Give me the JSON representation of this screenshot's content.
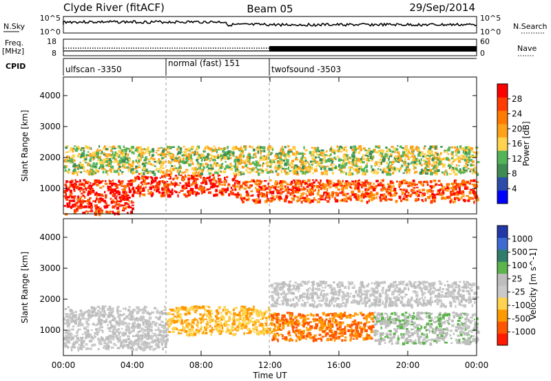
{
  "header": {
    "station": "Clyde River (fitACF)",
    "beam": "Beam 05",
    "date": "29/Sep/2014"
  },
  "panels": {
    "nsky_label": "N.Sky",
    "nsky_ticks": [
      "10^5",
      "10^0"
    ],
    "nsearch_label": "N.Search",
    "nsearch_ticks": [
      "10^5",
      "10^0"
    ],
    "freq_label_1": "Freq.",
    "freq_label_2": "[MHz]",
    "freq_ticks": [
      "18",
      "8"
    ],
    "nave_label": "Nave",
    "nave_ticks": [
      "60",
      "0"
    ],
    "cpid_label": "CPID",
    "cpid_segments": [
      {
        "label": "ulfscan -3350",
        "start_hour": 0,
        "end_hour": 6
      },
      {
        "label": "normal (fast) 151",
        "start_hour": 6,
        "end_hour": 12
      },
      {
        "label": "twofsound -3503",
        "start_hour": 12,
        "end_hour": 24
      }
    ]
  },
  "colors": {
    "power_scale": [
      "#0000ff",
      "#2b4ca8",
      "#3e8c52",
      "#53b45a",
      "#ffd34d",
      "#ffa21a",
      "#ff7a00",
      "#ff3d00",
      "#ff0000"
    ],
    "velocity_scale": [
      "#2338a8",
      "#3d6bd1",
      "#2f7d6a",
      "#5cb44a",
      "#bdbdbd",
      "#c9c9c9",
      "#ffd34d",
      "#ff9900",
      "#ff5500",
      "#ff1a00"
    ]
  },
  "chart_data": [
    {
      "type": "heatmap",
      "title": "Beam 05",
      "xlabel": "Time UT",
      "ylabel": "Slant Range [km]",
      "x_ticks": [
        "00:00",
        "04:00",
        "08:00",
        "12:00",
        "16:00",
        "20:00",
        "00:00"
      ],
      "x_range_hours": [
        0,
        24
      ],
      "y_ticks": [
        "1000",
        "2000",
        "3000",
        "4000"
      ],
      "ylim": [
        180,
        4600
      ],
      "colorbar": {
        "label": "Power [dB]",
        "ticks": [
          "4",
          "8",
          "12",
          "16",
          "20",
          "24",
          "28"
        ],
        "range": [
          0,
          30
        ]
      },
      "echo_regions": [
        {
          "hours": [
            0,
            4
          ],
          "range_km": [
            200,
            1300
          ],
          "value": 28
        },
        {
          "hours": [
            4,
            10
          ],
          "range_km": [
            800,
            1500
          ],
          "value": 26
        },
        {
          "hours": [
            10,
            24
          ],
          "range_km": [
            600,
            1300
          ],
          "value": 24
        },
        {
          "hours": [
            0,
            24
          ],
          "range_km": [
            1500,
            2400
          ],
          "value": 14
        }
      ]
    },
    {
      "type": "heatmap",
      "title": "",
      "xlabel": "Time UT",
      "ylabel": "Slant Range [km]",
      "x_ticks": [
        "00:00",
        "04:00",
        "08:00",
        "12:00",
        "16:00",
        "20:00",
        "00:00"
      ],
      "x_range_hours": [
        0,
        24
      ],
      "y_ticks": [
        "1000",
        "2000",
        "3000",
        "4000"
      ],
      "ylim": [
        180,
        4600
      ],
      "colorbar": {
        "label": "Velocity [m s^-1]",
        "ticks": [
          "1000",
          "500",
          "100",
          "25",
          "-25",
          "-100",
          "-500",
          "-1000"
        ],
        "range": [
          -1000,
          1000
        ]
      },
      "echo_regions": [
        {
          "hours": [
            0,
            6
          ],
          "range_km": [
            400,
            1800
          ],
          "value": 10
        },
        {
          "hours": [
            6,
            12
          ],
          "range_km": [
            900,
            1800
          ],
          "value": -400
        },
        {
          "hours": [
            12,
            18
          ],
          "range_km": [
            700,
            1600
          ],
          "value": -600
        },
        {
          "hours": [
            18,
            24
          ],
          "range_km": [
            600,
            1600
          ],
          "value": 120
        },
        {
          "hours": [
            12,
            24
          ],
          "range_km": [
            1800,
            2600
          ],
          "value": 5
        }
      ]
    }
  ]
}
